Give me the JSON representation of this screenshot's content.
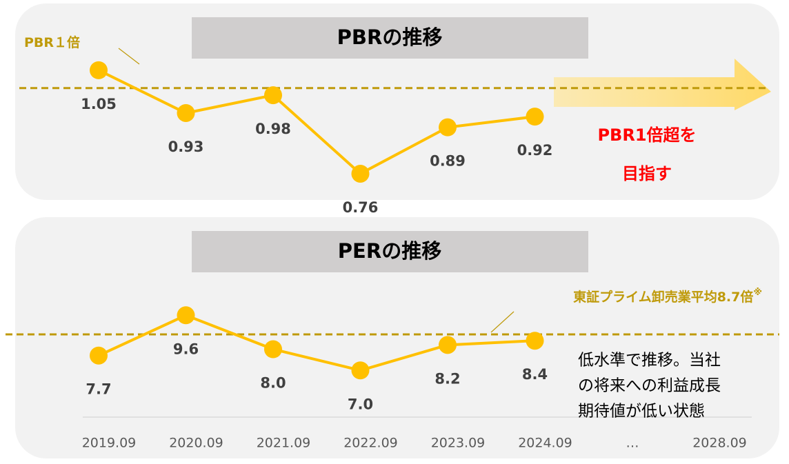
{
  "chart_data": [
    {
      "type": "line",
      "title": "PBRの推移",
      "series": [
        {
          "name": "PBR",
          "color": "#FFC000",
          "values": [
            1.05,
            0.93,
            0.98,
            0.76,
            0.89,
            0.92
          ]
        }
      ],
      "ylim": [
        0.7,
        1.1
      ],
      "reference_line": {
        "value": 1,
        "label": "PBR１倍",
        "color": "#BF9A0A"
      },
      "annotation": {
        "lines": [
          "PBR1倍超を",
          "目指す"
        ],
        "color": "#FF0000"
      }
    },
    {
      "type": "line",
      "title": "PERの推移",
      "categories": [
        "2019.09",
        "2020.09",
        "2021.09",
        "2022.09",
        "2023.09",
        "2024.09",
        "…",
        "2028.09"
      ],
      "series": [
        {
          "name": "PER",
          "color": "#FFC000",
          "values": [
            7.7,
            9.6,
            8.0,
            7.0,
            8.2,
            8.4,
            null,
            null
          ],
          "value_labels": [
            "7.7",
            "9.6",
            "8.0",
            "7.0",
            "8.2",
            "8.4",
            null,
            null
          ]
        }
      ],
      "ylim": [
        6,
        10
      ],
      "reference_line": {
        "value": 8.7,
        "label": "東証プライム卸売業平均8.7倍",
        "note": "※",
        "color": "#BF9A0A"
      },
      "annotation": {
        "lines": [
          "低水準で推移。当社",
          "の将来への利益成長",
          "期待値が低い状態"
        ],
        "color": "#000000"
      }
    }
  ]
}
